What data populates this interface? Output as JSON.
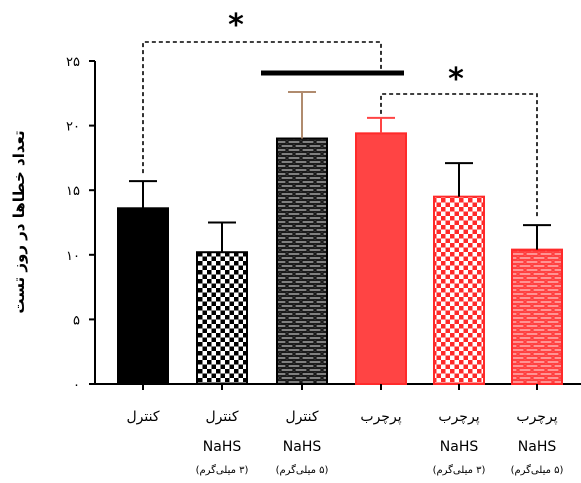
{
  "chart_data": {
    "type": "bar",
    "ylabel": "تعداد خطاها در روز تست",
    "ylim": [
      0,
      25
    ],
    "yticks": [
      {
        "value": 0,
        "label": "۰"
      },
      {
        "value": 5,
        "label": "۵"
      },
      {
        "value": 10,
        "label": "۱۰"
      },
      {
        "value": 15,
        "label": "۱۵"
      },
      {
        "value": 20,
        "label": "۲۰"
      },
      {
        "value": 25,
        "label": "۲۵"
      }
    ],
    "categories": [
      {
        "line1": "کنترل",
        "line2": "",
        "line3": ""
      },
      {
        "line1": "کنترل",
        "line2": "NaHS",
        "line3": "(۳ میلی‌گرم)"
      },
      {
        "line1": "کنترل",
        "line2": "NaHS",
        "line3": "(۵ میلی‌گرم)"
      },
      {
        "line1": "پرچرب",
        "line2": "",
        "line3": ""
      },
      {
        "line1": "پرچرب",
        "line2": "NaHS",
        "line3": "(۳ میلی‌گرم)"
      },
      {
        "line1": "پرچرب",
        "line2": "NaHS",
        "line3": "(۵ میلی‌گرم)"
      }
    ],
    "values": [
      13.6,
      10.2,
      19.0,
      19.4,
      14.5,
      10.4
    ],
    "errors": [
      2.1,
      2.3,
      3.6,
      1.2,
      2.6,
      1.9
    ],
    "error_colors": [
      "#000000",
      "#000000",
      "#b08b6e",
      "#ff4444",
      "#000000",
      "#000000"
    ],
    "fills": [
      "solid-black",
      "checker-black",
      "brick-black",
      "solid-red",
      "checker-red",
      "brick-red"
    ],
    "significance": [
      {
        "from": 0,
        "to": 3,
        "label": "*",
        "style": "dashed"
      },
      {
        "from": 3,
        "to": 5,
        "label": "*",
        "style": "dashed"
      },
      {
        "from": 2,
        "to": 3,
        "label": "",
        "style": "solid"
      }
    ],
    "grid": false,
    "legend": "none"
  }
}
